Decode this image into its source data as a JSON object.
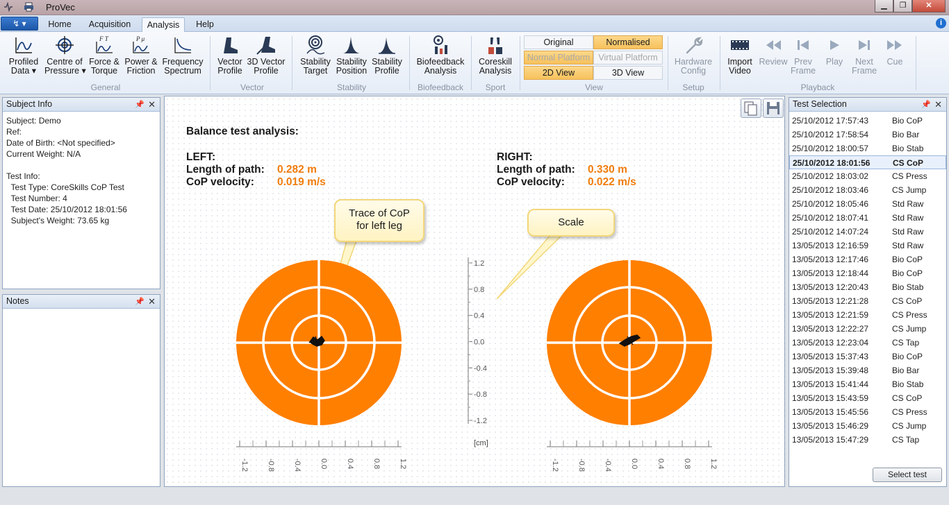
{
  "app": {
    "title": "ProVec"
  },
  "tabs": {
    "app_menu": "↯ ▾",
    "home": "Home",
    "acquisition": "Acquisition",
    "analysis": "Analysis",
    "help": "Help"
  },
  "ribbon": {
    "profiled_data": "Profiled\nData ▾",
    "centre_of_pressure": "Centre of\nPressure ▾",
    "force_torque": "Force &\nTorque",
    "power_friction": "Power &\nFriction",
    "frequency_spectrum": "Frequency\nSpectrum",
    "group_general": "General",
    "vector_profile": "Vector\nProfile",
    "vector_profile_3d": "3D Vector\nProfile",
    "group_vector": "Vector",
    "stability_target": "Stability\nTarget",
    "stability_position": "Stability\nPosition",
    "stability_profile": "Stability\nProfile",
    "group_stability": "Stability",
    "biofeedback_analysis": "Biofeedback\nAnalysis",
    "group_biofeedback": "Biofeedback",
    "coreskill_analysis": "Coreskill\nAnalysis",
    "group_sport": "Sport",
    "view_original": "Original",
    "view_normalised": "Normalised",
    "view_normal_platform": "Normal Platform",
    "view_virtual_platform": "Virtual Platform",
    "view_2d": "2D View",
    "view_3d": "3D View",
    "group_view": "View",
    "hardware_config": "Hardware\nConfig",
    "group_setup": "Setup",
    "import_video": "Import\nVideo",
    "review": "Review",
    "prev_frame": "Prev\nFrame",
    "play": "Play",
    "next_frame": "Next\nFrame",
    "cue": "Cue",
    "group_playback": "Playback"
  },
  "subject_panel": {
    "title": "Subject Info",
    "lines": [
      "Subject: Demo",
      "Ref:",
      "Date of Birth: <Not specified>",
      "Current Weight: N/A",
      "",
      "Test Info:",
      "  Test Type: CoreSkills CoP Test",
      "  Test Number: 4",
      "  Test Date: 25/10/2012 18:01:56",
      "  Subject's Weight: 73.65 kg"
    ]
  },
  "notes_panel": {
    "title": "Notes"
  },
  "analysis": {
    "heading": "Balance test analysis:",
    "left": {
      "label": "LEFT:",
      "path_label": "Length of path:",
      "path_value": "0.282 m",
      "vel_label": "CoP velocity:",
      "vel_value": "0.019 m/s"
    },
    "right": {
      "label": "RIGHT:",
      "path_label": "Length of path:",
      "path_value": "0.330 m",
      "vel_label": "CoP velocity:",
      "vel_value": "0.022 m/s"
    },
    "callout_trace": "Trace of CoP\nfor left leg",
    "callout_scale": "Scale",
    "scale_unit": "[cm]",
    "scale_ticks": [
      "1.2",
      "0.8",
      "0.4",
      "0.0",
      "-0.4",
      "-0.8",
      "-1.2"
    ],
    "axis_ticks": [
      "-1.2",
      "-0.8",
      "-0.4",
      "0.0",
      "0.4",
      "0.8",
      "1.2"
    ],
    "target_color": "#ff7f00"
  },
  "test_panel": {
    "title": "Test Selection",
    "selected_index": 3,
    "rows": [
      {
        "date": "25/10/2012 17:57:43",
        "kind": "Bio CoP"
      },
      {
        "date": "25/10/2012 17:58:54",
        "kind": "Bio Bar"
      },
      {
        "date": "25/10/2012 18:00:57",
        "kind": "Bio Stab"
      },
      {
        "date": "25/10/2012 18:01:56",
        "kind": "CS CoP"
      },
      {
        "date": "25/10/2012 18:03:02",
        "kind": "CS Press"
      },
      {
        "date": "25/10/2012 18:03:46",
        "kind": "CS Jump"
      },
      {
        "date": "25/10/2012 18:05:46",
        "kind": "Std Raw"
      },
      {
        "date": "25/10/2012 18:07:41",
        "kind": "Std Raw"
      },
      {
        "date": "25/10/2012 14:07:24",
        "kind": "Std Raw"
      },
      {
        "date": "13/05/2013 12:16:59",
        "kind": "Std Raw"
      },
      {
        "date": "13/05/2013 12:17:46",
        "kind": "Bio CoP"
      },
      {
        "date": "13/05/2013 12:18:44",
        "kind": "Bio CoP"
      },
      {
        "date": "13/05/2013 12:20:43",
        "kind": "Bio Stab"
      },
      {
        "date": "13/05/2013 12:21:28",
        "kind": "CS CoP"
      },
      {
        "date": "13/05/2013 12:21:59",
        "kind": "CS Press"
      },
      {
        "date": "13/05/2013 12:22:27",
        "kind": "CS Jump"
      },
      {
        "date": "13/05/2013 12:23:04",
        "kind": "CS Tap"
      },
      {
        "date": "13/05/2013 15:37:43",
        "kind": "Bio CoP"
      },
      {
        "date": "13/05/2013 15:39:48",
        "kind": "Bio Bar"
      },
      {
        "date": "13/05/2013 15:41:44",
        "kind": "Bio Stab"
      },
      {
        "date": "13/05/2013 15:43:59",
        "kind": "CS CoP"
      },
      {
        "date": "13/05/2013 15:45:56",
        "kind": "CS Press"
      },
      {
        "date": "13/05/2013 15:46:29",
        "kind": "CS Jump"
      },
      {
        "date": "13/05/2013 15:47:29",
        "kind": "CS Tap"
      }
    ],
    "select_button": "Select test"
  }
}
